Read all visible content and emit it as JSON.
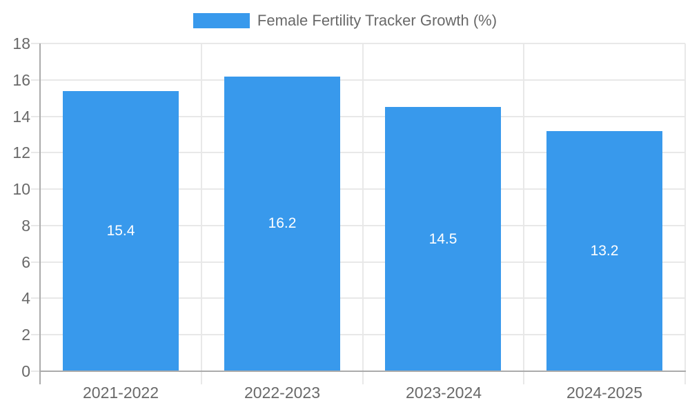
{
  "legend": {
    "label": "Female Fertility Tracker Growth (%)"
  },
  "colors": {
    "bar": "#3899EC",
    "label_text": "#696969",
    "grid": "#E8E8E8",
    "axis": "#ABABAB",
    "data_label": "#FFFFFF",
    "background": "#FFFFFF"
  },
  "chart_data": {
    "type": "bar",
    "title": "Female Fertility Tracker Growth (%)",
    "series_name": "Female Fertility Tracker Growth (%)",
    "categories": [
      "2021-2022",
      "2022-2023",
      "2023-2024",
      "2024-2025"
    ],
    "values": [
      15.4,
      16.2,
      14.5,
      13.2
    ],
    "data_labels": [
      "15.4",
      "16.2",
      "14.5",
      "13.2"
    ],
    "xlabel": "",
    "ylabel": "",
    "ylim": [
      0,
      18
    ],
    "yticks": [
      0,
      2,
      4,
      6,
      8,
      10,
      12,
      14,
      16,
      18
    ],
    "grid": true,
    "legend_position": "top",
    "bar_color": "#3899EC"
  }
}
